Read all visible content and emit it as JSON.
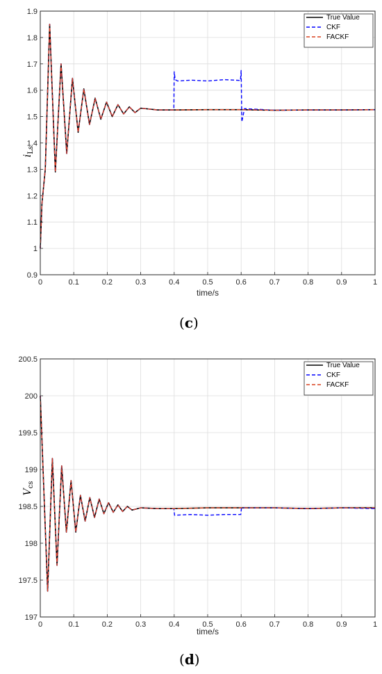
{
  "chart_data": [
    {
      "type": "line",
      "panel_label": "c",
      "xlabel": "time/s",
      "ylabel_main": "i",
      "ylabel_sub": "Ls",
      "xlim": [
        0,
        1
      ],
      "ylim": [
        0.9,
        1.9
      ],
      "xticks": [
        "0",
        "0.1",
        "0.2",
        "0.3",
        "0.4",
        "0.5",
        "0.6",
        "0.7",
        "0.8",
        "0.9",
        "1"
      ],
      "yticks": [
        "0.9",
        "1",
        "1.1",
        "1.2",
        "1.3",
        "1.4",
        "1.5",
        "1.6",
        "1.7",
        "1.8",
        "1.9"
      ],
      "grid": true,
      "legend_position": "top-right",
      "series": [
        {
          "name": "True Value",
          "color": "#000000",
          "style": "solid",
          "x": [
            0,
            0.005,
            0.015,
            0.028,
            0.045,
            0.062,
            0.079,
            0.096,
            0.113,
            0.13,
            0.147,
            0.164,
            0.181,
            0.198,
            0.215,
            0.232,
            0.249,
            0.266,
            0.283,
            0.3,
            0.35,
            0.4,
            0.5,
            0.6,
            0.7,
            0.8,
            0.9,
            1.0
          ],
          "y": [
            1.0,
            1.17,
            1.3,
            1.85,
            1.29,
            1.7,
            1.36,
            1.645,
            1.44,
            1.605,
            1.47,
            1.57,
            1.49,
            1.555,
            1.5,
            1.545,
            1.51,
            1.537,
            1.515,
            1.532,
            1.525,
            1.525,
            1.526,
            1.526,
            1.524,
            1.525,
            1.525,
            1.526
          ]
        },
        {
          "name": "CKF",
          "color": "#0000ff",
          "style": "dashed",
          "x": [
            0,
            0.005,
            0.015,
            0.028,
            0.045,
            0.062,
            0.079,
            0.096,
            0.113,
            0.13,
            0.147,
            0.164,
            0.181,
            0.198,
            0.215,
            0.232,
            0.249,
            0.266,
            0.283,
            0.3,
            0.35,
            0.399,
            0.4,
            0.403,
            0.41,
            0.45,
            0.5,
            0.55,
            0.598,
            0.6,
            0.602,
            0.61,
            0.7,
            0.8,
            0.9,
            1.0
          ],
          "y": [
            1.0,
            1.17,
            1.3,
            1.85,
            1.29,
            1.7,
            1.36,
            1.645,
            1.44,
            1.605,
            1.47,
            1.57,
            1.49,
            1.555,
            1.5,
            1.545,
            1.51,
            1.537,
            1.515,
            1.532,
            1.525,
            1.525,
            1.67,
            1.64,
            1.635,
            1.638,
            1.635,
            1.64,
            1.637,
            1.675,
            1.48,
            1.53,
            1.524,
            1.525,
            1.525,
            1.526
          ]
        },
        {
          "name": "FACKF",
          "color": "#d9411e",
          "style": "dashed",
          "x": [
            0,
            0.005,
            0.015,
            0.028,
            0.045,
            0.062,
            0.079,
            0.096,
            0.113,
            0.13,
            0.147,
            0.164,
            0.181,
            0.198,
            0.215,
            0.232,
            0.249,
            0.266,
            0.283,
            0.3,
            0.35,
            0.4,
            0.5,
            0.6,
            0.7,
            0.8,
            0.9,
            1.0
          ],
          "y": [
            1.0,
            1.17,
            1.3,
            1.85,
            1.29,
            1.7,
            1.36,
            1.645,
            1.44,
            1.605,
            1.47,
            1.57,
            1.49,
            1.555,
            1.5,
            1.545,
            1.51,
            1.537,
            1.515,
            1.532,
            1.525,
            1.525,
            1.526,
            1.526,
            1.524,
            1.525,
            1.525,
            1.526
          ]
        }
      ]
    },
    {
      "type": "line",
      "panel_label": "d",
      "xlabel": "time/s",
      "ylabel_main": "V",
      "ylabel_sub": "cs",
      "xlim": [
        0,
        1
      ],
      "ylim": [
        197,
        200.5
      ],
      "xticks": [
        "0",
        "0.1",
        "0.2",
        "0.3",
        "0.4",
        "0.5",
        "0.6",
        "0.7",
        "0.8",
        "0.9",
        "1"
      ],
      "yticks": [
        "197",
        "197.5",
        "198",
        "198.5",
        "199",
        "199.5",
        "200",
        "200.5"
      ],
      "grid": true,
      "legend_position": "top-right",
      "series": [
        {
          "name": "True Value",
          "color": "#000000",
          "style": "solid",
          "x": [
            0,
            0.022,
            0.036,
            0.05,
            0.064,
            0.078,
            0.092,
            0.106,
            0.12,
            0.134,
            0.148,
            0.162,
            0.176,
            0.19,
            0.204,
            0.218,
            0.232,
            0.246,
            0.26,
            0.274,
            0.3,
            0.35,
            0.4,
            0.5,
            0.6,
            0.7,
            0.8,
            0.9,
            1.0
          ],
          "y": [
            200.0,
            197.35,
            199.15,
            197.7,
            199.05,
            198.15,
            198.85,
            198.15,
            198.65,
            198.3,
            198.62,
            198.35,
            198.6,
            198.4,
            198.55,
            198.42,
            198.52,
            198.43,
            198.5,
            198.45,
            198.48,
            198.47,
            198.47,
            198.48,
            198.48,
            198.48,
            198.47,
            198.48,
            198.48
          ]
        },
        {
          "name": "CKF",
          "color": "#0000ff",
          "style": "dashed",
          "x": [
            0,
            0.022,
            0.036,
            0.05,
            0.064,
            0.078,
            0.092,
            0.106,
            0.12,
            0.134,
            0.148,
            0.162,
            0.176,
            0.19,
            0.204,
            0.218,
            0.232,
            0.246,
            0.26,
            0.274,
            0.3,
            0.35,
            0.399,
            0.401,
            0.45,
            0.5,
            0.55,
            0.599,
            0.601,
            0.7,
            0.8,
            0.9,
            1.0
          ],
          "y": [
            200.0,
            197.35,
            199.15,
            197.7,
            199.05,
            198.15,
            198.85,
            198.15,
            198.65,
            198.3,
            198.62,
            198.35,
            198.6,
            198.4,
            198.55,
            198.42,
            198.52,
            198.43,
            198.5,
            198.45,
            198.48,
            198.47,
            198.47,
            198.38,
            198.39,
            198.38,
            198.39,
            198.39,
            198.48,
            198.48,
            198.47,
            198.48,
            198.47
          ]
        },
        {
          "name": "FACKF",
          "color": "#d9411e",
          "style": "dashed",
          "x": [
            0,
            0.022,
            0.036,
            0.05,
            0.064,
            0.078,
            0.092,
            0.106,
            0.12,
            0.134,
            0.148,
            0.162,
            0.176,
            0.19,
            0.204,
            0.218,
            0.232,
            0.246,
            0.26,
            0.274,
            0.3,
            0.35,
            0.4,
            0.5,
            0.6,
            0.7,
            0.8,
            0.9,
            1.0
          ],
          "y": [
            200.0,
            197.35,
            199.15,
            197.7,
            199.05,
            198.15,
            198.85,
            198.15,
            198.65,
            198.3,
            198.62,
            198.35,
            198.6,
            198.4,
            198.55,
            198.42,
            198.52,
            198.43,
            198.5,
            198.45,
            198.48,
            198.47,
            198.47,
            198.48,
            198.48,
            198.48,
            198.47,
            198.48,
            198.48
          ]
        }
      ]
    }
  ]
}
